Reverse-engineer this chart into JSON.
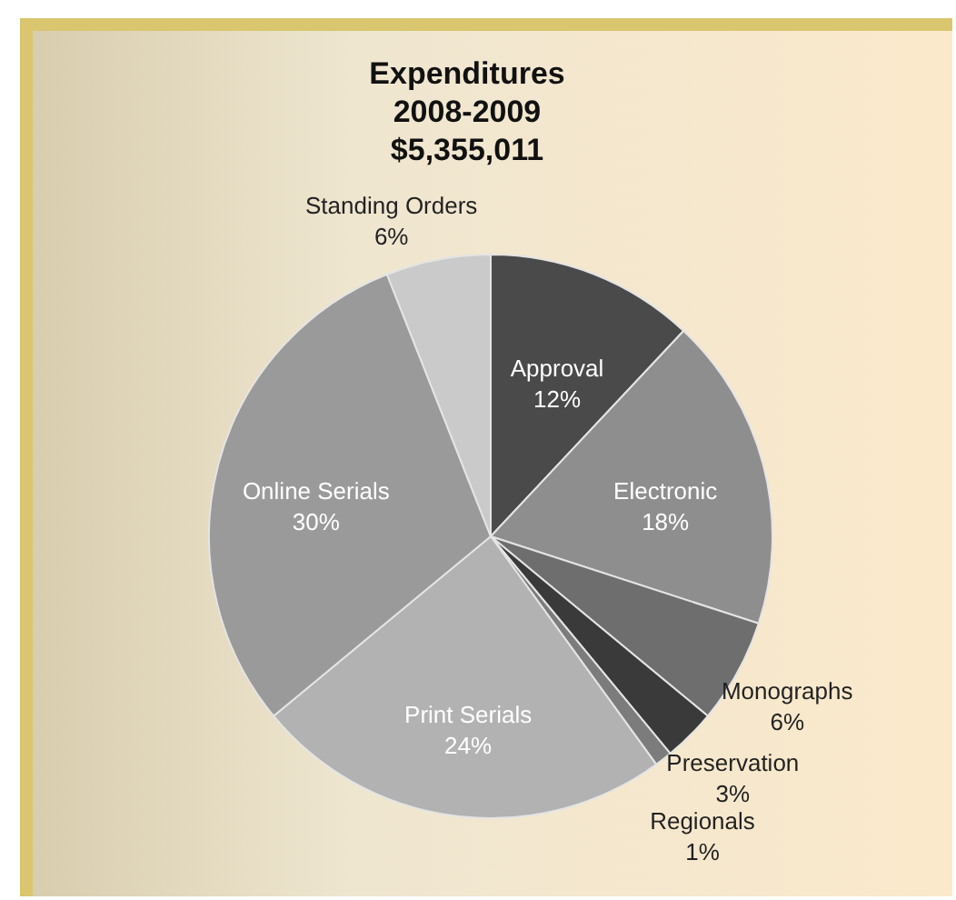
{
  "chart_data": {
    "type": "pie",
    "title": "Expenditures 2008-2009",
    "subtitle": "$5,355,011",
    "categories": [
      "Approval",
      "Electronic",
      "Monographs",
      "Preservation",
      "Regionals",
      "Print Serials",
      "Online Serials",
      "Standing Orders"
    ],
    "values": [
      12,
      18,
      6,
      3,
      1,
      24,
      30,
      6
    ],
    "value_labels": [
      "12%",
      "18%",
      "6%",
      "3%",
      "1%",
      "24%",
      "30%",
      "6%"
    ],
    "colors": [
      "#4a4a4a",
      "#8e8e8e",
      "#6e6e6e",
      "#3a3a3a",
      "#7c7c7c",
      "#b2b2b2",
      "#9a9a9a",
      "#cacaca"
    ]
  }
}
